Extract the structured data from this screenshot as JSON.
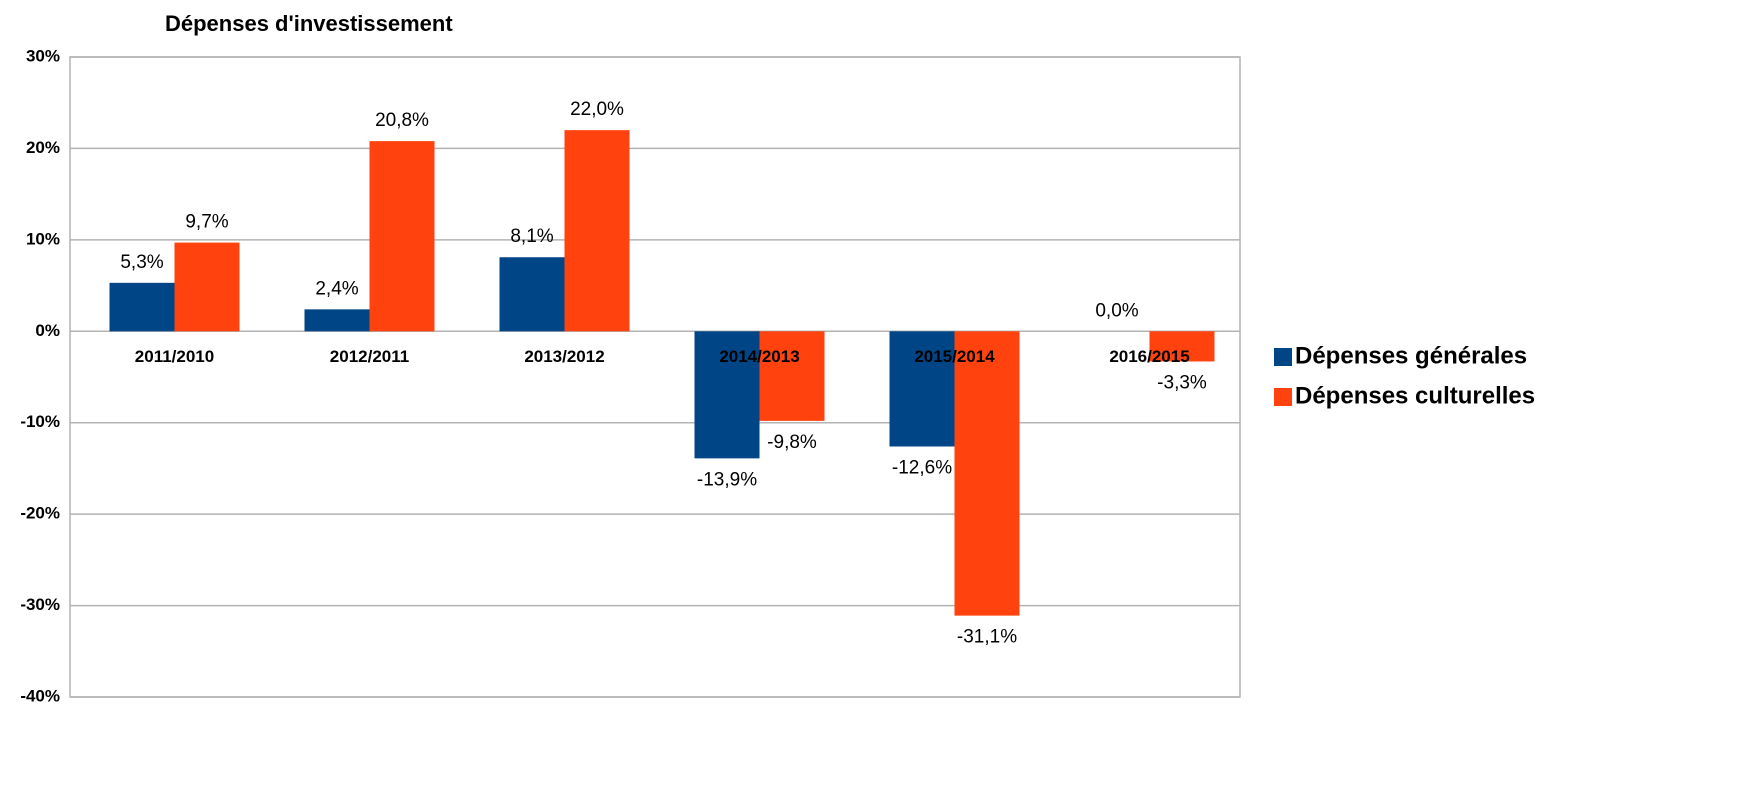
{
  "chart_data": {
    "type": "bar",
    "title": "Dépenses d'investissement",
    "categories": [
      "2011/2010",
      "2012/2011",
      "2013/2012",
      "2014/2013",
      "2015/2014",
      "2016/2015"
    ],
    "series": [
      {
        "name": "Dépenses générales",
        "color": "#004586",
        "values": [
          5.3,
          2.4,
          8.1,
          -13.9,
          -12.6,
          0.0
        ],
        "value_labels": [
          "5,3%",
          "2,4%",
          "8,1%",
          "-13,9%",
          "-12,6%",
          "0,0%"
        ]
      },
      {
        "name": "Dépenses culturelles",
        "color": "#ff420e",
        "values": [
          9.7,
          20.8,
          22.0,
          -9.8,
          -31.1,
          -3.3
        ],
        "value_labels": [
          "9,7%",
          "20,8%",
          "22,0%",
          "-9,8%",
          "-31,1%",
          "-3,3%"
        ]
      }
    ],
    "ylim": [
      -40,
      30
    ],
    "yticks": [
      {
        "value": -40,
        "label": "-40%"
      },
      {
        "value": -30,
        "label": "-30%"
      },
      {
        "value": -20,
        "label": "-20%"
      },
      {
        "value": -10,
        "label": "-10%"
      },
      {
        "value": 0,
        "label": "0%"
      },
      {
        "value": 10,
        "label": "10%"
      },
      {
        "value": 20,
        "label": "20%"
      },
      {
        "value": 30,
        "label": "30%"
      }
    ],
    "grid": true,
    "legend": "right"
  }
}
